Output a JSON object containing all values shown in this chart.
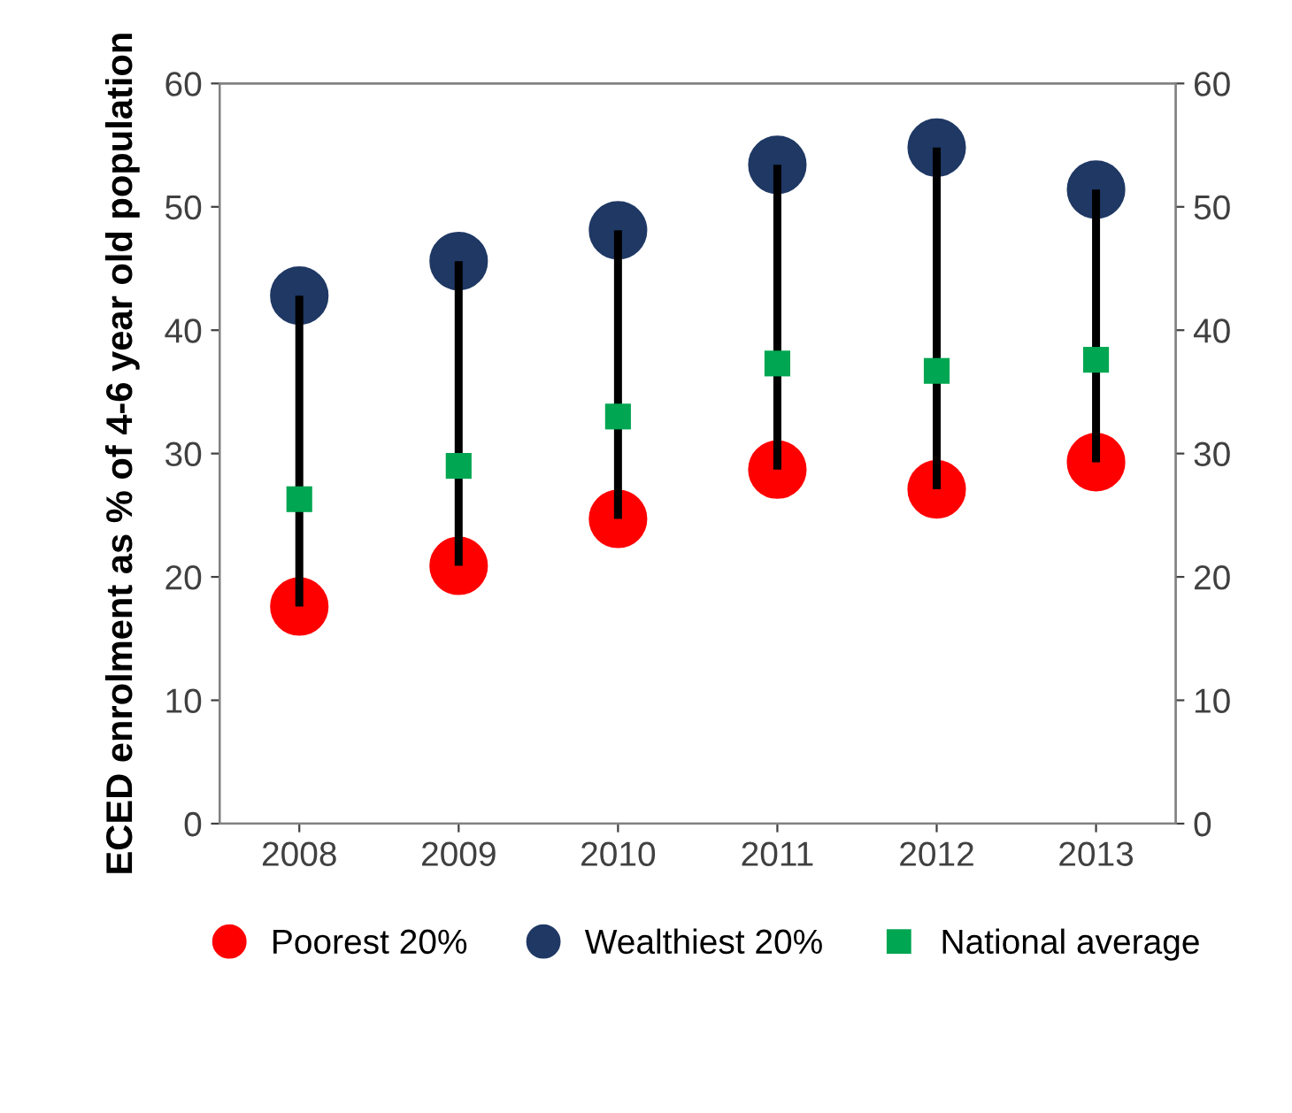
{
  "chart_data": {
    "type": "scatter",
    "ylabel": "ECED enrolment as % of 4-6 year old population",
    "categories": [
      "2008",
      "2009",
      "2010",
      "2011",
      "2012",
      "2013"
    ],
    "series": [
      {
        "type": "bar",
        "color": "#000000",
        "base": [
          17.6,
          20.9,
          24.7,
          28.7,
          27.1,
          29.3
        ],
        "values": [
          25.2,
          24.7,
          23.4,
          24.7,
          27.7,
          22.1
        ]
      },
      {
        "name": "Poorest 20%",
        "color": "#ff0000",
        "marker": "circle",
        "values": [
          17.6,
          20.9,
          24.7,
          28.7,
          27.1,
          29.3
        ]
      },
      {
        "name": "Wealthiest 20%",
        "color": "#1f3864",
        "marker": "circle",
        "values": [
          42.8,
          45.6,
          48.1,
          53.4,
          54.8,
          51.4
        ]
      },
      {
        "name": "National average",
        "color": "#00a651",
        "marker": "square",
        "values": [
          26.3,
          29.0,
          33.0,
          37.3,
          36.7,
          37.6
        ]
      }
    ],
    "ylim": [
      0,
      60
    ],
    "yticks": [
      0,
      10,
      20,
      30,
      40,
      50,
      60
    ],
    "y2lim": [
      0,
      60
    ],
    "y2ticks": [
      0,
      10,
      20,
      30,
      40,
      50,
      60
    ],
    "legend": "bottom",
    "grid": false
  }
}
